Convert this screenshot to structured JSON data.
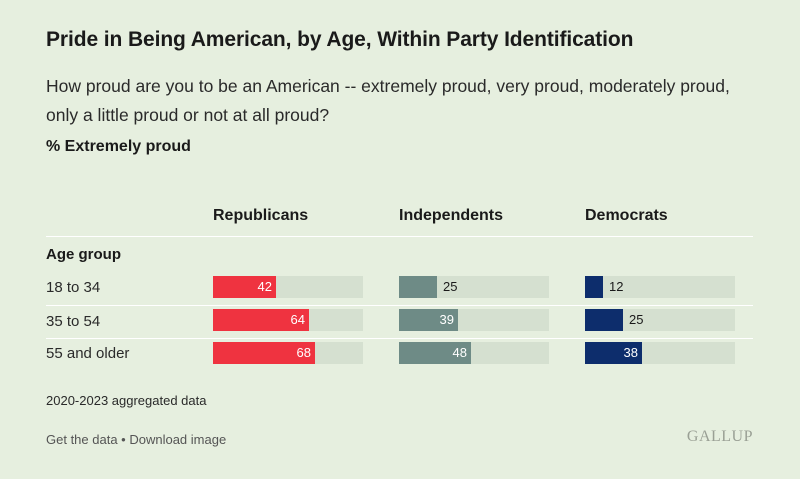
{
  "header": {
    "title": "Pride in Being American, by Age, Within Party Identification",
    "subtitle": "How proud are you to be an American -- extremely proud, very proud, moderately proud, only a little proud or not at all proud?",
    "measure": "% Extremely proud"
  },
  "chart_data": {
    "type": "bar",
    "title": "Pride in Being American, by Age, Within Party Identification",
    "row_header": "Age group",
    "categories": [
      "18 to 34",
      "35 to 54",
      "55 and older"
    ],
    "series": [
      {
        "name": "Republicans",
        "values": [
          42,
          64,
          68
        ],
        "color": "#ef3340"
      },
      {
        "name": "Independents",
        "values": [
          25,
          39,
          48
        ],
        "color": "#6e8b86"
      },
      {
        "name": "Democrats",
        "values": [
          12,
          25,
          38
        ],
        "color": "#0d2d6c"
      }
    ],
    "ylim": [
      0,
      100
    ],
    "unit": "%"
  },
  "colors": {
    "background": "#e6efdf",
    "track": "#d5e0d0"
  },
  "footer": {
    "note": "2020-2023 aggregated data",
    "get_data": "Get the data",
    "separator": " • ",
    "download": "Download image",
    "logo": "GALLUP"
  }
}
